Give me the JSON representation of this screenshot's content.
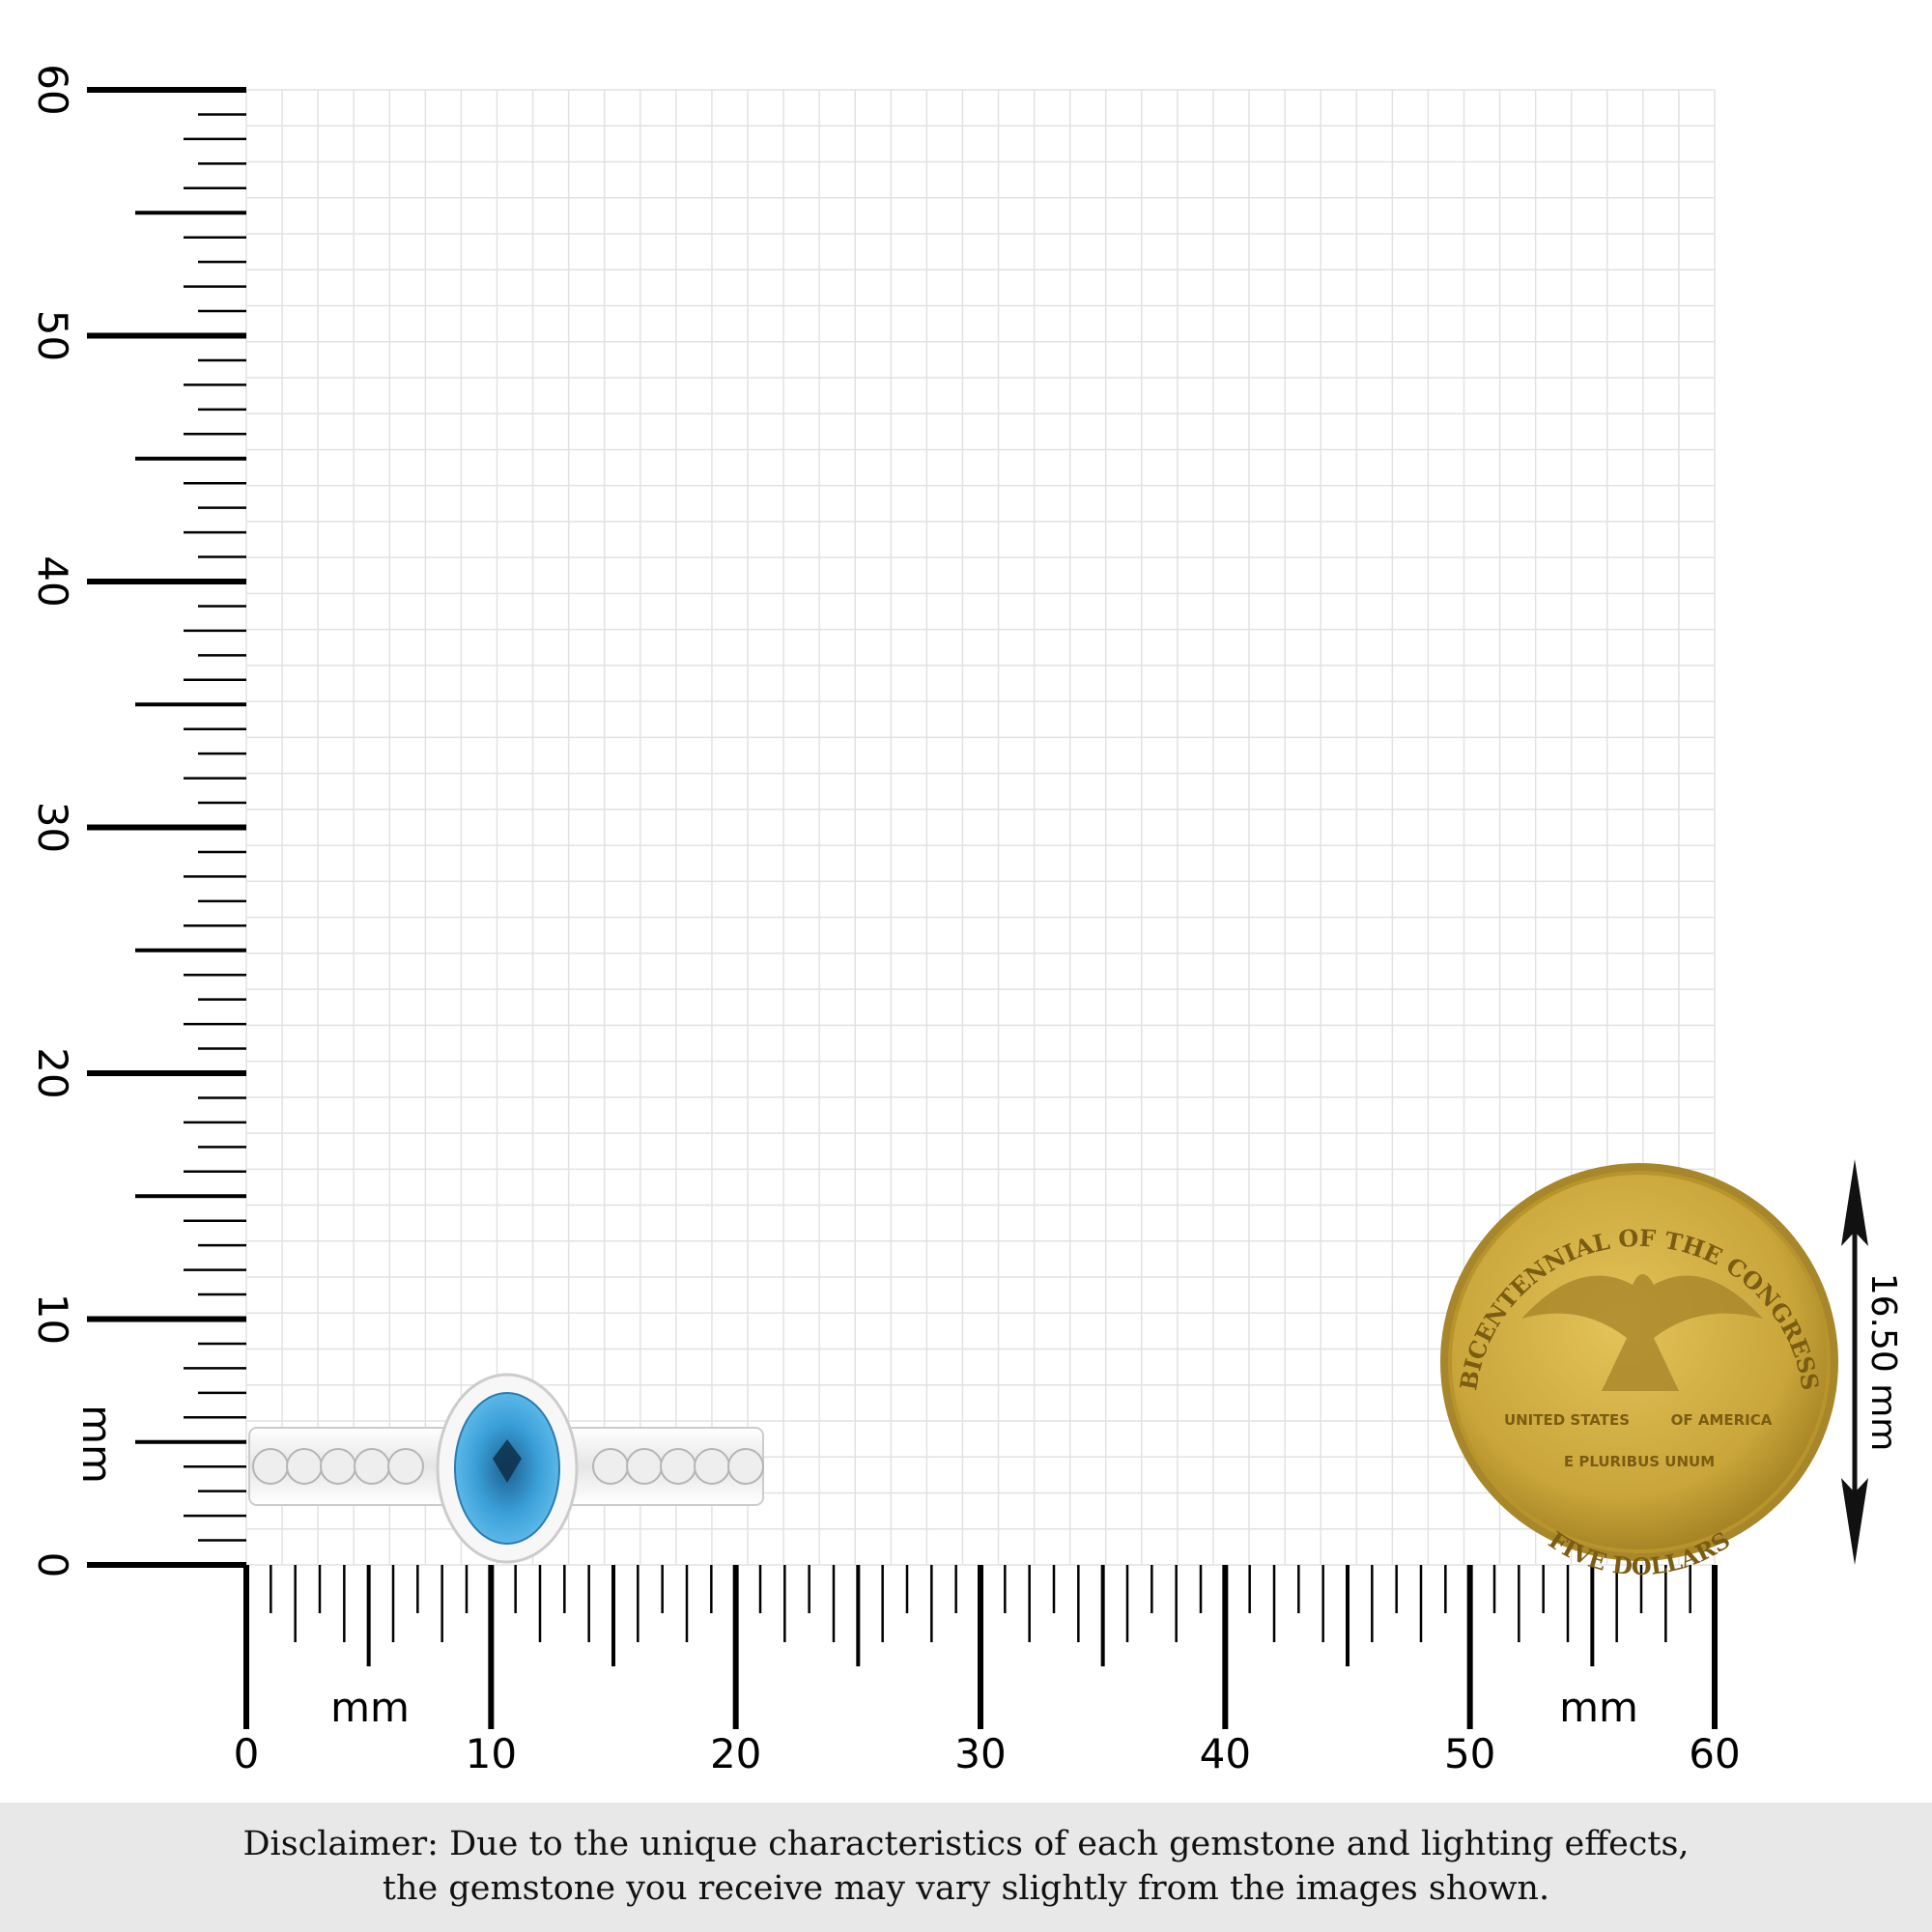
{
  "scale": {
    "unit_label": "mm",
    "x_axis": {
      "min": 0,
      "max": 60,
      "labels": [
        "0",
        "10",
        "20",
        "30",
        "40",
        "50",
        "60"
      ]
    },
    "y_axis": {
      "min": 0,
      "max": 60,
      "labels": [
        "0",
        "10",
        "20",
        "30",
        "40",
        "50",
        "60"
      ]
    }
  },
  "product": {
    "type": "ring",
    "center_stone_color": "#3a9fd8",
    "metal_color": "#f2f2f2",
    "side_stones": 10
  },
  "coin": {
    "top_text": "BICENTENNIAL OF THE CONGRESS",
    "left_text": "UNITED STATES",
    "right_text": "OF AMERICA",
    "motto": "E PLURIBUS UNUM",
    "bottom_text": "FIVE DOLLARS",
    "color": "#c9a53a"
  },
  "dimension": {
    "label": "16.50 mm",
    "value_mm": 16.5
  },
  "disclaimer": {
    "line1": "Disclaimer: Due to the unique characteristics of each gemstone and lighting effects,",
    "line2": "the gemstone you receive may vary slightly from the images shown."
  }
}
